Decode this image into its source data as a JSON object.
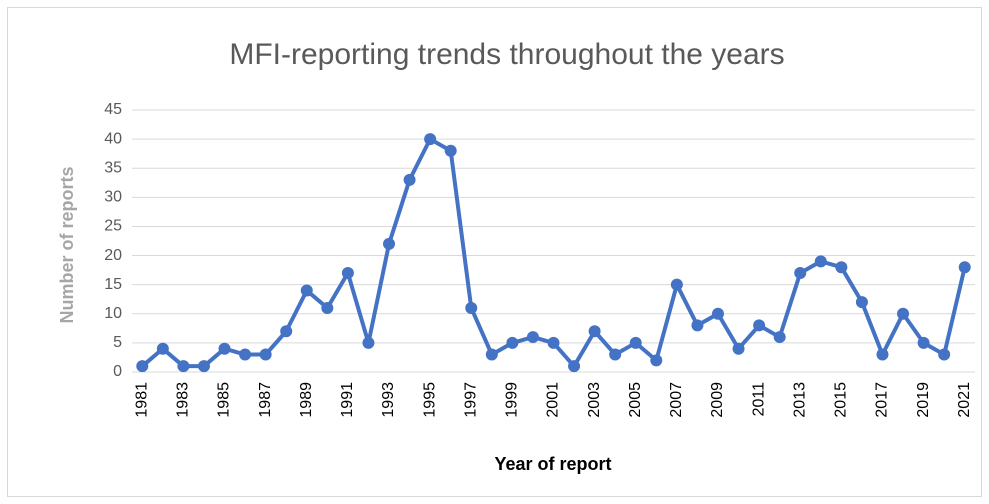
{
  "chart_data": {
    "type": "line",
    "title": "MFI-reporting  trends throughout the years",
    "x_label": "Year of report",
    "y_label": "Number of reports",
    "categories": [
      "1981",
      null,
      "1983",
      null,
      "1985",
      null,
      "1987",
      null,
      "1989",
      null,
      "1991",
      null,
      "1993",
      null,
      "1995",
      null,
      "1997",
      null,
      "1999",
      null,
      "2001",
      null,
      "2003",
      null,
      "2005",
      null,
      "2007",
      null,
      "2009",
      null,
      "2011",
      null,
      "2013",
      null,
      "2015",
      null,
      "2017",
      null,
      "2019",
      null,
      "2021"
    ],
    "series": [
      {
        "name": "Number of reports",
        "color": "#4472c4",
        "values": [
          1,
          4,
          1,
          1,
          4,
          3,
          3,
          7,
          14,
          11,
          17,
          5,
          22,
          33,
          40,
          38,
          11,
          3,
          5,
          6,
          5,
          1,
          7,
          3,
          5,
          2,
          15,
          8,
          10,
          4,
          8,
          6,
          17,
          19,
          18,
          12,
          3,
          10,
          5,
          3,
          18
        ]
      }
    ],
    "ylim": [
      0,
      45
    ],
    "yticks": [
      0,
      5,
      10,
      15,
      20,
      25,
      30,
      35,
      40,
      45
    ],
    "grid": true
  }
}
